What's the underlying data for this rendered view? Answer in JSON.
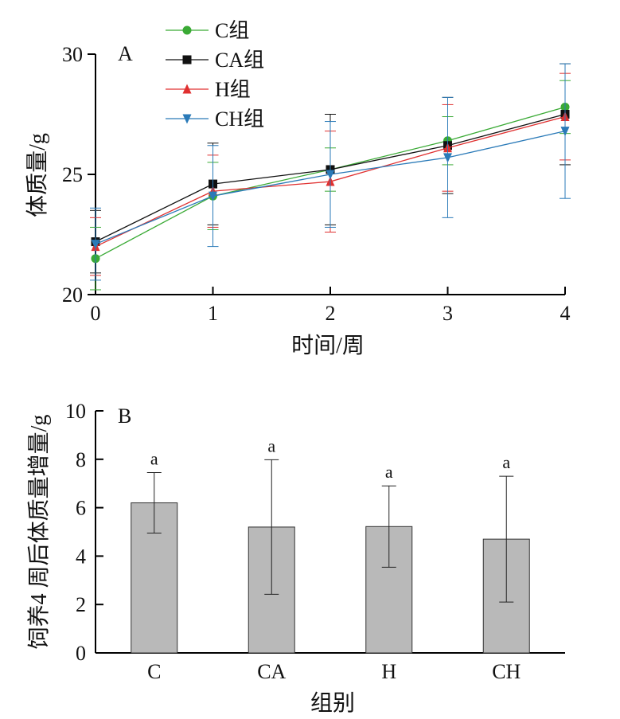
{
  "chart_data": [
    {
      "panel": "A",
      "type": "line",
      "xlabel": "时间/周",
      "ylabel": "体质量/g",
      "x": [
        0,
        1,
        2,
        3,
        4
      ],
      "x_ticks": [
        "0",
        "1",
        "2",
        "3",
        "4"
      ],
      "y_ticks": [
        "20",
        "25",
        "30"
      ],
      "xlim": [
        0,
        4
      ],
      "ylim": [
        20,
        30
      ],
      "grid": false,
      "legend_position": "top-left",
      "series": [
        {
          "name": "C组",
          "color": "#3aaa35",
          "marker": "circle",
          "values": [
            21.5,
            24.1,
            25.2,
            26.4,
            27.8
          ],
          "errors": [
            1.3,
            1.4,
            0.9,
            1.0,
            1.1
          ]
        },
        {
          "name": "CA组",
          "color": "#111111",
          "marker": "square",
          "values": [
            22.2,
            24.6,
            25.2,
            26.2,
            27.5
          ],
          "errors": [
            1.3,
            1.7,
            2.3,
            2.0,
            2.1
          ]
        },
        {
          "name": "H组",
          "color": "#e03030",
          "marker": "triangle-up",
          "values": [
            22.0,
            24.3,
            24.7,
            26.1,
            27.4
          ],
          "errors": [
            1.2,
            1.5,
            2.1,
            1.8,
            1.8
          ]
        },
        {
          "name": "CH组",
          "color": "#2a7ab8",
          "marker": "triangle-down",
          "values": [
            22.1,
            24.1,
            25.0,
            25.7,
            26.8
          ],
          "errors": [
            1.5,
            2.1,
            2.2,
            2.5,
            2.8
          ]
        }
      ]
    },
    {
      "panel": "B",
      "type": "bar",
      "xlabel": "组别",
      "ylabel": "饲养4 周后体质量增量/g",
      "categories": [
        "C",
        "CA",
        "H",
        "CH"
      ],
      "values": [
        6.2,
        5.2,
        5.22,
        4.7
      ],
      "errors": [
        1.25,
        2.78,
        1.68,
        2.6
      ],
      "significance": [
        "a",
        "a",
        "a",
        "a"
      ],
      "y_ticks": [
        "0",
        "2",
        "4",
        "6",
        "8",
        "10"
      ],
      "ylim": [
        0,
        10
      ],
      "bar_color": "#b9b9b9",
      "grid": false
    }
  ]
}
